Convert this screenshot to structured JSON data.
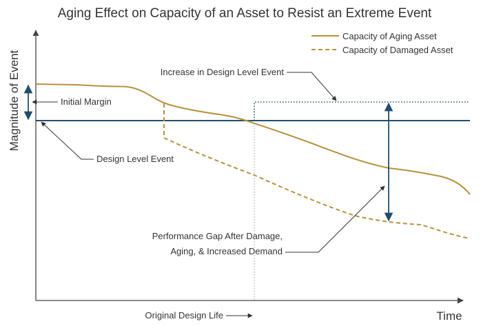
{
  "title": "Aging Effect on Capacity of an Asset to Resist an Extreme Event",
  "axes": {
    "y_label": "Magnitude of  Event",
    "x_label": "Time"
  },
  "legend": {
    "aging": "Capacity of Aging Asset",
    "damaged": "Capacity of Damaged Asset"
  },
  "annotations": {
    "initial_margin": "Initial Margin",
    "design_level_event": "Design Level Event",
    "increase_design_level": "Increase in Design Level Event",
    "performance_gap_line1": "Performance Gap After Damage,",
    "performance_gap_line2": "Aging, & Increased Demand",
    "original_design_life": "Original Design Life"
  },
  "colors": {
    "capacity": "#b8903a",
    "design_level": "#1f4e6e",
    "arrows": "#1f4e6e",
    "axis": "#444444",
    "text": "#333333",
    "guide": "#999999"
  }
}
